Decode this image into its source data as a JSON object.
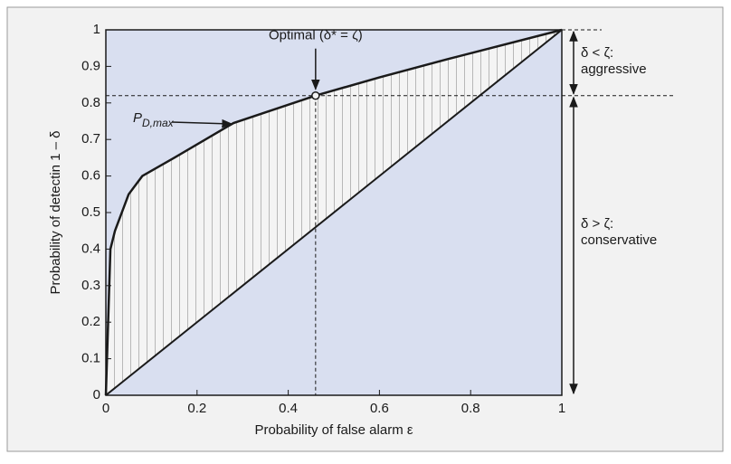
{
  "chart_data": {
    "type": "line",
    "xlabel": "Probability of false alarm ε",
    "ylabel": "Probability of detectin 1 – δ",
    "xlim": [
      0,
      1
    ],
    "ylim": [
      0,
      1
    ],
    "xticks": [
      0,
      0.2,
      0.4,
      0.6,
      0.8,
      1
    ],
    "yticks": [
      0,
      0.1,
      0.2,
      0.3,
      0.4,
      0.5,
      0.6,
      0.7,
      0.8,
      0.9,
      1
    ],
    "series": [
      {
        "name": "P",
        "subscript": "D,max",
        "color": "#1a1a1a",
        "x": [
          0,
          0.005,
          0.01,
          0.02,
          0.05,
          0.08,
          0.15,
          0.28,
          0.46,
          0.6,
          0.75,
          1
        ],
        "values": [
          0,
          0.2,
          0.4,
          0.45,
          0.55,
          0.6,
          0.65,
          0.745,
          0.82,
          0.87,
          0.92,
          1
        ]
      },
      {
        "color": "#1a1a1a",
        "x": [
          0,
          1
        ],
        "values": [
          0,
          1
        ]
      }
    ],
    "optimal": {
      "x": 0.46,
      "y": 0.82,
      "label": "Optimal (δ* = ζ)"
    },
    "regions": [
      {
        "lines": [
          "δ < ζ:",
          "aggressive"
        ],
        "from": 1,
        "to": 0.82
      },
      {
        "lines": [
          "δ > ζ:",
          "conservative"
        ],
        "from": 0.82,
        "to": 0
      }
    ]
  }
}
